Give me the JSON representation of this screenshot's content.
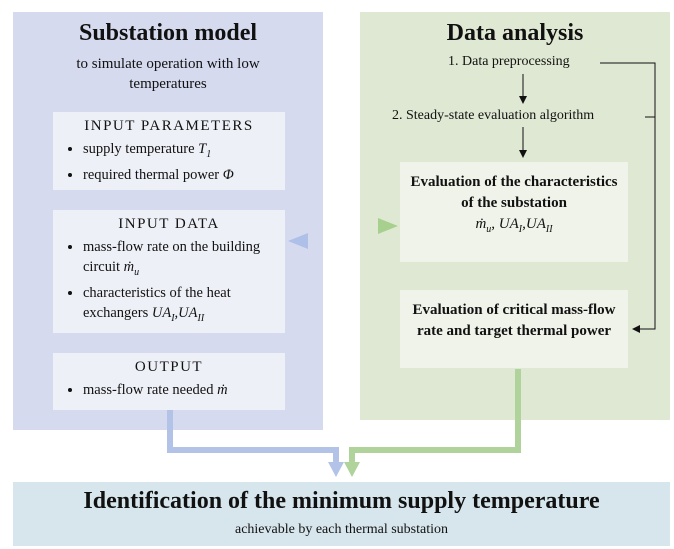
{
  "left": {
    "title": "Substation model",
    "subtitle": "to simulate operation with low temperatures",
    "boxes": [
      {
        "heading": "INPUT PARAMETERS",
        "items": [
          {
            "text": "supply temperature",
            "math": [
              {
                "t": "T",
                "sub": "1"
              }
            ]
          },
          {
            "text": "required thermal power",
            "math": [
              {
                "t": "Φ"
              }
            ]
          }
        ]
      },
      {
        "heading": "INPUT DATA",
        "items": [
          {
            "text": "mass-flow rate on the building circuit",
            "math": [
              {
                "t": "ṁ",
                "sub": "u"
              }
            ]
          },
          {
            "text": "characteristics of the heat exchangers",
            "math": [
              {
                "t": "UA",
                "sub": "I"
              },
              {
                "t": ","
              },
              {
                "t": "UA",
                "sub": "II"
              }
            ]
          }
        ]
      },
      {
        "heading": "OUTPUT",
        "items": [
          {
            "text": "mass-flow rate needed",
            "math": [
              {
                "t": "ṁ"
              }
            ]
          }
        ]
      }
    ]
  },
  "right": {
    "title": "Data analysis",
    "steps": [
      "1. Data preprocessing",
      "2. Steady-state evaluation algorithm"
    ],
    "boxes": [
      {
        "text": "Evaluation of the characteristics of the substation",
        "math": [
          {
            "t": "ṁ",
            "sub": "u"
          },
          {
            "t": ", "
          },
          {
            "t": "UA",
            "sub": "I"
          },
          {
            "t": ","
          },
          {
            "t": "UA",
            "sub": "II"
          }
        ]
      },
      {
        "text": "Evaluation of critical mass-flow rate and target thermal power"
      }
    ]
  },
  "bottom": {
    "title": "Identification of the minimum supply temperature",
    "subtitle": "achievable by each thermal substation"
  }
}
